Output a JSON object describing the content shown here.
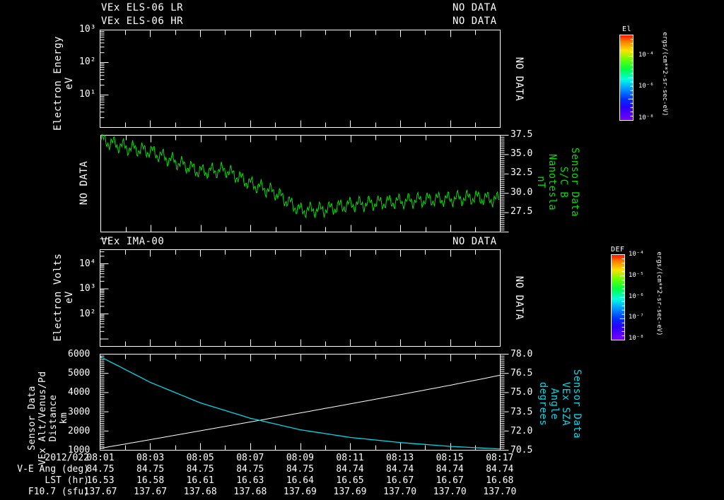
{
  "panels": {
    "els": {
      "title_lr": "VEx ELS-06 LR",
      "title_hr": "VEx ELS-06 HR",
      "status_lr": "NO DATA",
      "status_hr": "NO DATA",
      "ylabel_line1": "Electron Energy",
      "ylabel_line2": "eV",
      "yticks": [
        "10³",
        "10²",
        "10¹"
      ],
      "right_status": "NO DATA",
      "colorbar": {
        "title": "El",
        "ticks": [
          "10⁻⁴",
          "10⁻⁶",
          "10⁻⁸"
        ],
        "units": "ergs/(cm**2-sr-sec-eV)"
      }
    },
    "mag": {
      "left_status": "NO DATA",
      "yticks": [
        "37.5",
        "35.0",
        "32.5",
        "30.0",
        "27.5"
      ],
      "ylabel_lines": [
        "Sensor Data",
        "S/C B",
        "Nanotesla",
        "nT"
      ],
      "color": "#00e000"
    },
    "ima": {
      "title": "VEx IMA-00",
      "status": "NO DATA",
      "ylabel_line1": "Electron Volts",
      "ylabel_line2": "eV",
      "yticks": [
        "10⁴",
        "10³",
        "10²"
      ],
      "right_status": "NO DATA",
      "colorbar": {
        "title": "DEF",
        "ticks": [
          "10⁻⁴",
          "10⁻⁵",
          "10⁻⁶",
          "10⁻⁷",
          "10⁻⁸"
        ],
        "units": "ergs/(cm**2-sr-sec-eV)"
      }
    },
    "orbit": {
      "left_yticks": [
        "6000",
        "5000",
        "4000",
        "3000",
        "2000",
        "1000"
      ],
      "left_ylabel_lines": [
        "Sensor Data",
        "VEx Alt/Venus/Pd",
        "Distance",
        "km"
      ],
      "right_yticks": [
        "78.0",
        "76.5",
        "75.0",
        "73.5",
        "72.0",
        "70.5"
      ],
      "right_ylabel_lines": [
        "Sensor Data",
        "VEx SZA",
        "Angle",
        "degrees"
      ],
      "alt_color": "#ffffff",
      "sza_color": "#00d8e8"
    }
  },
  "footer": {
    "row_labels": [
      "2012/022",
      "V-E Ang (deg)",
      "LST (hr)",
      "F10.7 (sfu)"
    ],
    "times": [
      "08:01",
      "08:03",
      "08:05",
      "08:07",
      "08:09",
      "08:11",
      "08:13",
      "08:15",
      "08:17"
    ],
    "ve_ang": [
      "84.75",
      "84.75",
      "84.75",
      "84.75",
      "84.75",
      "84.74",
      "84.74",
      "84.74",
      "84.74"
    ],
    "lst": [
      "16.53",
      "16.58",
      "16.61",
      "16.63",
      "16.64",
      "16.65",
      "16.67",
      "16.67",
      "16.68"
    ],
    "f107": [
      "137.67",
      "137.67",
      "137.68",
      "137.68",
      "137.69",
      "137.69",
      "137.70",
      "137.70",
      "137.70"
    ]
  },
  "chart_data": [
    {
      "type": "heatmap",
      "title": "VEx ELS-06 LR / VEx ELS-06 HR",
      "ylabel": "Electron Energy (eV)",
      "yscale": "log",
      "yticks": [
        "10^1",
        "10^2",
        "10^3"
      ],
      "status": "NO DATA",
      "colorbar": {
        "label": "El",
        "units": "ergs/(cm**2-sr-sec-eV)",
        "ticks": [
          "1e-8",
          "1e-6",
          "1e-4"
        ]
      }
    },
    {
      "type": "line",
      "title": "Sensor Data S/C B",
      "ylabel": "Nanotesla (nT)",
      "ylim": [
        25.5,
        37.5
      ],
      "yticks": [
        27.5,
        30.0,
        32.5,
        35.0,
        37.5
      ],
      "x": [
        "08:01",
        "08:02",
        "08:03",
        "08:04",
        "08:05",
        "08:06",
        "08:07",
        "08:08",
        "08:09",
        "08:10",
        "08:11",
        "08:12",
        "08:13",
        "08:14",
        "08:15",
        "08:16",
        "08:17"
      ],
      "series": [
        {
          "name": "S/C B",
          "color": "#00e000",
          "values": [
            36.9,
            36.0,
            35.5,
            34.2,
            33.0,
            33.2,
            31.5,
            30.4,
            28.2,
            28.3,
            28.9,
            29.1,
            29.3,
            29.5,
            29.6,
            29.8,
            29.5
          ]
        }
      ],
      "left_status": "NO DATA"
    },
    {
      "type": "heatmap",
      "title": "VEx IMA-00",
      "ylabel": "Electron Volts (eV)",
      "yscale": "log",
      "yticks": [
        "10^2",
        "10^3",
        "10^4"
      ],
      "status": "NO DATA",
      "colorbar": {
        "label": "DEF",
        "units": "ergs/(cm**2-sr-sec-eV)",
        "ticks": [
          "1e-8",
          "1e-7",
          "1e-6",
          "1e-5",
          "1e-4"
        ]
      }
    },
    {
      "type": "line",
      "title": "VEx Alt/Venus/Pd Distance & VEx SZA Angle",
      "xlabel": "2012/022",
      "x": [
        "08:01",
        "08:03",
        "08:05",
        "08:07",
        "08:09",
        "08:11",
        "08:13",
        "08:15",
        "08:17"
      ],
      "ylabel": "Distance (km)",
      "ylim": [
        1000,
        6000
      ],
      "y2label": "Angle (degrees)",
      "y2lim": [
        70.5,
        78.0
      ],
      "series": [
        {
          "name": "VEx Alt/Venus/Pd Distance",
          "axis": "left",
          "color": "#ffffff",
          "values": [
            1100,
            1550,
            2010,
            2470,
            2940,
            3410,
            3890,
            4380,
            4900
          ]
        },
        {
          "name": "VEx SZA Angle",
          "axis": "right",
          "color": "#00d8e8",
          "values": [
            77.8,
            75.8,
            74.2,
            73.0,
            72.1,
            71.5,
            71.1,
            70.8,
            70.6
          ]
        }
      ]
    }
  ]
}
